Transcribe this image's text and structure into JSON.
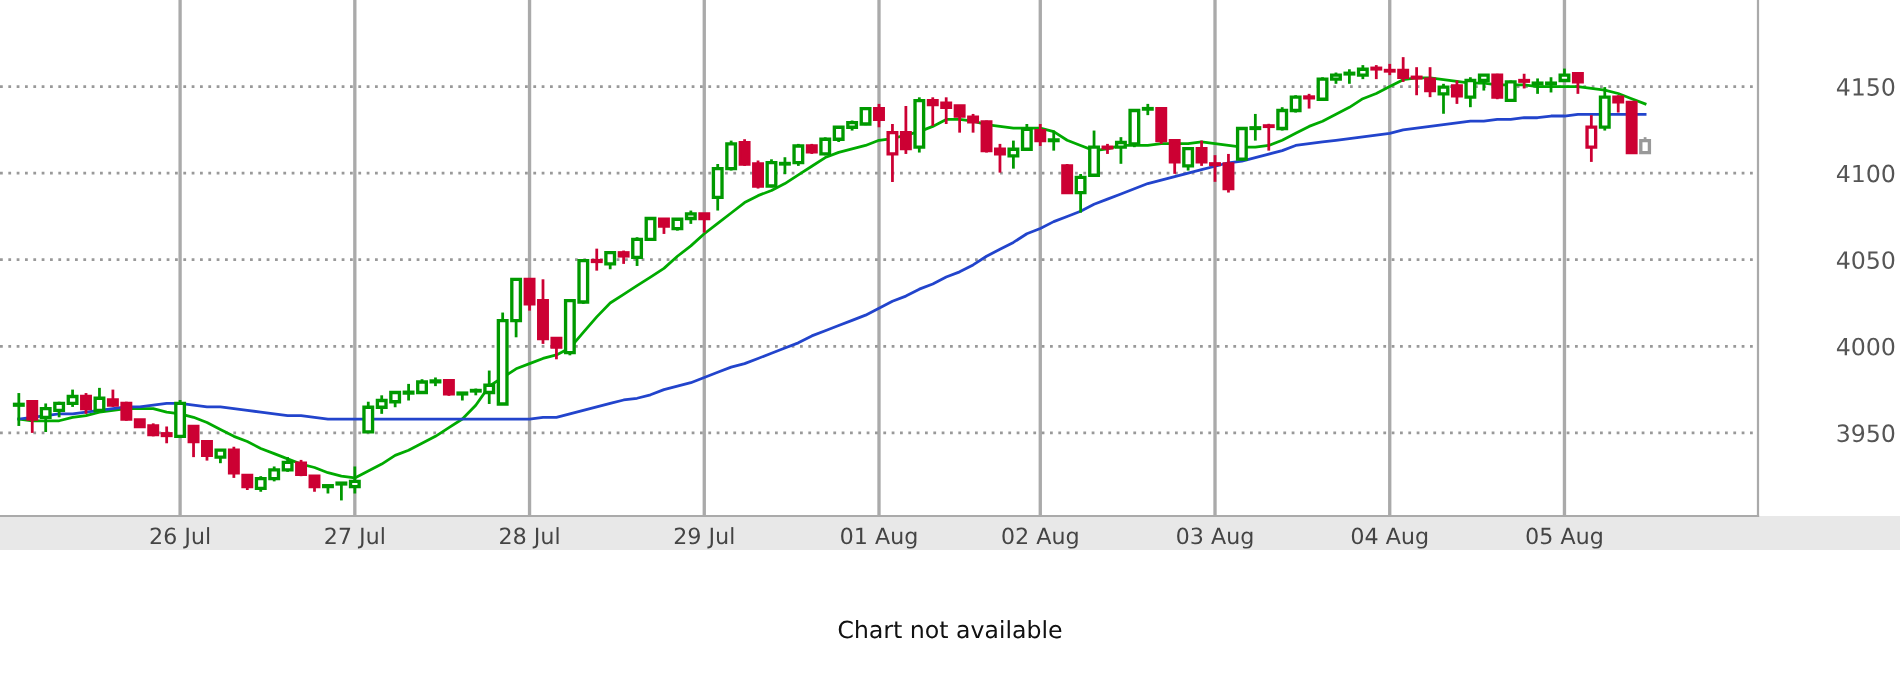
{
  "chart_data": {
    "type": "candlestick",
    "categories": [
      null,
      null,
      null,
      null,
      null,
      null,
      null,
      null,
      null,
      null,
      null,
      null,
      "26 Jul",
      null,
      null,
      null,
      null,
      null,
      null,
      null,
      null,
      null,
      null,
      null,
      null,
      "27 Jul",
      null,
      null,
      null,
      null,
      null,
      null,
      null,
      null,
      null,
      null,
      null,
      null,
      "28 Jul",
      null,
      null,
      null,
      null,
      null,
      null,
      null,
      null,
      null,
      null,
      null,
      null,
      "29 Jul",
      null,
      null,
      null,
      null,
      null,
      null,
      null,
      null,
      null,
      null,
      null,
      null,
      "01 Aug",
      null,
      null,
      null,
      null,
      null,
      null,
      null,
      null,
      null,
      null,
      null,
      "02 Aug",
      null,
      null,
      null,
      null,
      null,
      null,
      null,
      null,
      null,
      null,
      null,
      null,
      "03 Aug",
      null,
      null,
      null,
      null,
      null,
      null,
      null,
      null,
      null,
      null,
      null,
      null,
      "04 Aug",
      null,
      null,
      null,
      null,
      null,
      null,
      null,
      null,
      null,
      null,
      null,
      null,
      "05 Aug",
      null,
      null,
      null,
      null,
      null,
      null
    ],
    "ohlc": [
      [
        3966,
        3973,
        3954,
        3966.5
      ],
      [
        3968,
        3968,
        3950,
        3958
      ],
      [
        3959,
        3967,
        3950.5,
        3964
      ],
      [
        3963,
        3968,
        3959,
        3967
      ],
      [
        3967,
        3975,
        3965,
        3971
      ],
      [
        3971,
        3973,
        3961,
        3964
      ],
      [
        3963,
        3976,
        3962,
        3970
      ],
      [
        3969,
        3975,
        3965,
        3966
      ],
      [
        3967,
        3968,
        3957,
        3958
      ],
      [
        3957.5,
        3958,
        3953,
        3953.7
      ],
      [
        3954,
        3955.5,
        3948,
        3949
      ],
      [
        3949.5,
        3953.7,
        3944,
        3948.5
      ],
      [
        3948,
        3969,
        3947,
        3967
      ],
      [
        3953.7,
        3953.7,
        3936,
        3945
      ],
      [
        3945,
        3945,
        3934,
        3937
      ],
      [
        3936,
        3940,
        3932.5,
        3940
      ],
      [
        3940,
        3942,
        3924,
        3927
      ],
      [
        3925.5,
        3925.5,
        3917,
        3919
      ],
      [
        3918,
        3925,
        3916,
        3923.6
      ],
      [
        3923.6,
        3930.6,
        3922,
        3928.6
      ],
      [
        3928.6,
        3936,
        3927.5,
        3933
      ],
      [
        3932.5,
        3934.4,
        3925,
        3926
      ],
      [
        3925,
        3925,
        3916,
        3919
      ],
      [
        3919,
        3920,
        3915,
        3919.5
      ],
      [
        3920.5,
        3921.5,
        3911,
        3921
      ],
      [
        3919,
        3930.6,
        3915,
        3922
      ],
      [
        3950.6,
        3968,
        3950.6,
        3964.8
      ],
      [
        3964.8,
        3971.7,
        3961,
        3968.7
      ],
      [
        3968,
        3973.3,
        3964.8,
        3973.3
      ],
      [
        3973,
        3978.3,
        3968.7,
        3973.5
      ],
      [
        3973.3,
        3981,
        3972.5,
        3979.4
      ],
      [
        3979.5,
        3982,
        3977,
        3980
      ],
      [
        3980.2,
        3980.2,
        3971.4,
        3972.5
      ],
      [
        3972.5,
        3973.3,
        3968.7,
        3973
      ],
      [
        3974.2,
        3975.6,
        3971.7,
        3974.5
      ],
      [
        3973.3,
        3986,
        3966.7,
        3977.5
      ],
      [
        3966.7,
        4019.5,
        3966.7,
        4014.8
      ],
      [
        4014.8,
        4038.7,
        4005.2,
        4038.7
      ],
      [
        4038.7,
        4038.7,
        4020.6,
        4024.5
      ],
      [
        4026.4,
        4038.7,
        4001.4,
        4004.5
      ],
      [
        4004.5,
        4004.5,
        3992.5,
        3999.5
      ],
      [
        3996.4,
        4027.2,
        3994.8,
        4026.4
      ],
      [
        4025.6,
        4049.5,
        4024.5,
        4049.5
      ],
      [
        4049.5,
        4056.4,
        4043.7,
        4049
      ],
      [
        4047.6,
        4054.1,
        4044.5,
        4054.1
      ],
      [
        4054,
        4055.3,
        4047.6,
        4052.2
      ],
      [
        4051.4,
        4063,
        4046.4,
        4061.8
      ],
      [
        4061.8,
        4074.5,
        4061,
        4073.8
      ],
      [
        4073.4,
        4073.4,
        4064.9,
        4069.5
      ],
      [
        4068,
        4073.4,
        4066.8,
        4073.4
      ],
      [
        4073.8,
        4078.4,
        4070.7,
        4076.5
      ],
      [
        4076.5,
        4076.5,
        4065.7,
        4073.8
      ],
      [
        4086,
        4105.3,
        4078.4,
        4102.6
      ],
      [
        4102.6,
        4118.8,
        4101.5,
        4116.9
      ],
      [
        4117.6,
        4119.6,
        4104.2,
        4105.3
      ],
      [
        4105.3,
        4107.3,
        4091.1,
        4092.6
      ],
      [
        4092.6,
        4108,
        4091.8,
        4106.1
      ],
      [
        4105.3,
        4109.2,
        4099.5,
        4105.6
      ],
      [
        4106.1,
        4116.9,
        4104.2,
        4115.7
      ],
      [
        4115.7,
        4116.9,
        4111.1,
        4112.3
      ],
      [
        4111.1,
        4120.7,
        4110.3,
        4119.6
      ],
      [
        4119.6,
        4126.5,
        4118,
        4126.5
      ],
      [
        4126.5,
        4130.4,
        4124.6,
        4129.2
      ],
      [
        4128.4,
        4137.3,
        4127.7,
        4137.3
      ],
      [
        4137.3,
        4140,
        4126.5,
        4131.1
      ],
      [
        4111.1,
        4128.4,
        4094.9,
        4123.4
      ],
      [
        4123.4,
        4138.8,
        4111.1,
        4114.2
      ],
      [
        4115,
        4143.8,
        4111.9,
        4141.9
      ],
      [
        4141.9,
        4143.8,
        4127.3,
        4139.6
      ],
      [
        4140.4,
        4143.8,
        4128.4,
        4138
      ],
      [
        4138.8,
        4138.8,
        4123.4,
        4133
      ],
      [
        4132.3,
        4134.2,
        4123.4,
        4129.6
      ],
      [
        4129.6,
        4130.4,
        4111.9,
        4113
      ],
      [
        4113.8,
        4116.9,
        4100.3,
        4111.1
      ],
      [
        4110,
        4118.8,
        4102.6,
        4113.8
      ],
      [
        4113.8,
        4128.4,
        4113,
        4125.3
      ],
      [
        4124.6,
        4128.4,
        4115.7,
        4118.8
      ],
      [
        4118.8,
        4124.6,
        4113,
        4119.2
      ],
      [
        4104.2,
        4105.3,
        4088,
        4088.8
      ],
      [
        4088.8,
        4099.5,
        4077.2,
        4097.6
      ],
      [
        4098.8,
        4124.6,
        4098.8,
        4115
      ],
      [
        4115,
        4116.9,
        4111.1,
        4114.6
      ],
      [
        4115,
        4120.8,
        4105.4,
        4117.7
      ],
      [
        4116.9,
        4136.2,
        4115,
        4136.2
      ],
      [
        4137,
        4140,
        4133.5,
        4137.3
      ],
      [
        4137.3,
        4137.3,
        4116.9,
        4118.8
      ],
      [
        4118.8,
        4118.8,
        4099.6,
        4106.5
      ],
      [
        4104.2,
        4115,
        4101.5,
        4114.2
      ],
      [
        4114.2,
        4118.8,
        4104.2,
        4106.5
      ],
      [
        4105.4,
        4110.4,
        4095,
        4105
      ],
      [
        4105.4,
        4111.1,
        4088.8,
        4091.1
      ],
      [
        4108.1,
        4126.5,
        4107.3,
        4125.8
      ],
      [
        4125.8,
        4134.2,
        4118.8,
        4126.2
      ],
      [
        4127.3,
        4128.5,
        4113,
        4127
      ],
      [
        4125.8,
        4138.1,
        4124.6,
        4136.2
      ],
      [
        4136.2,
        4145,
        4135,
        4143.9
      ],
      [
        4144,
        4145.8,
        4137.3,
        4143.5
      ],
      [
        4142.7,
        4155.4,
        4142.7,
        4154.3
      ],
      [
        4154.3,
        4158.1,
        4151.6,
        4156.6
      ],
      [
        4157.3,
        4160,
        4151.6,
        4157.7
      ],
      [
        4156.6,
        4162.4,
        4154.3,
        4160
      ],
      [
        4160.6,
        4162.4,
        4154.3,
        4160.2
      ],
      [
        4159.3,
        4163.1,
        4156.6,
        4159
      ],
      [
        4159.3,
        4167,
        4152.7,
        4155.4
      ],
      [
        4155.4,
        4161.2,
        4145,
        4155
      ],
      [
        4154.3,
        4161.2,
        4143.9,
        4147.7
      ],
      [
        4145.8,
        4151.6,
        4134.3,
        4149.7
      ],
      [
        4150.4,
        4153.5,
        4140,
        4144.6
      ],
      [
        4143.9,
        4155.4,
        4138.1,
        4153.5
      ],
      [
        4153.5,
        4156.6,
        4147.7,
        4156.6
      ],
      [
        4156.6,
        4157.4,
        4142.7,
        4143.9
      ],
      [
        4142,
        4153.5,
        4141.2,
        4152.7
      ],
      [
        4153.5,
        4157.4,
        4148.9,
        4153.1
      ],
      [
        4151.6,
        4154.7,
        4145.8,
        4152
      ],
      [
        4151.6,
        4155.4,
        4146.6,
        4152
      ],
      [
        4153.5,
        4160.4,
        4152.7,
        4156.6
      ],
      [
        4157.4,
        4157.4,
        4145.8,
        4152.7
      ],
      [
        4115,
        4133.5,
        4106.5,
        4126.6
      ],
      [
        4126.6,
        4149.7,
        4124.6,
        4143.9
      ],
      [
        4143.9,
        4145,
        4135,
        4141.2
      ],
      [
        4140.8,
        4140.8,
        4111.1,
        4111.9
      ],
      [
        4111.9,
        4120.8,
        4111.9,
        4118.8
      ]
    ],
    "colors": [
      "#009900",
      "#cc0033",
      "#009900",
      "#009900",
      "#009900",
      "#cc0033",
      "#009900",
      "#cc0033",
      "#cc0033",
      "#cc0033",
      "#cc0033",
      "#cc0033",
      "#009900",
      "#cc0033",
      "#cc0033",
      "#009900",
      "#cc0033",
      "#cc0033",
      "#009900",
      "#009900",
      "#009900",
      "#cc0033",
      "#cc0033",
      "#009900",
      "#009900",
      "#009900",
      "#009900",
      "#009900",
      "#009900",
      "#009900",
      "#009900",
      "#009900",
      "#cc0033",
      "#009900",
      "#009900",
      "#009900",
      "#009900",
      "#009900",
      "#cc0033",
      "#cc0033",
      "#cc0033",
      "#009900",
      "#009900",
      "#cc0033",
      "#009900",
      "#cc0033",
      "#009900",
      "#009900",
      "#cc0033",
      "#009900",
      "#009900",
      "#cc0033",
      "#009900",
      "#009900",
      "#cc0033",
      "#cc0033",
      "#009900",
      "#009900",
      "#009900",
      "#cc0033",
      "#009900",
      "#009900",
      "#009900",
      "#009900",
      "#cc0033",
      "#cc0033",
      "#cc0033",
      "#009900",
      "#cc0033",
      "#cc0033",
      "#cc0033",
      "#cc0033",
      "#cc0033",
      "#cc0033",
      "#009900",
      "#009900",
      "#cc0033",
      "#009900",
      "#cc0033",
      "#009900",
      "#009900",
      "#cc0033",
      "#009900",
      "#009900",
      "#009900",
      "#cc0033",
      "#cc0033",
      "#009900",
      "#cc0033",
      "#cc0033",
      "#cc0033",
      "#009900",
      "#009900",
      "#cc0033",
      "#009900",
      "#009900",
      "#cc0033",
      "#009900",
      "#009900",
      "#009900",
      "#009900",
      "#cc0033",
      "#cc0033",
      "#cc0033",
      "#cc0033",
      "#cc0033",
      "#009900",
      "#cc0033",
      "#009900",
      "#009900",
      "#cc0033",
      "#009900",
      "#cc0033",
      "#009900",
      "#009900",
      "#009900",
      "#cc0033",
      "#cc0033",
      "#009900",
      "#cc0033",
      "#cc0033",
      "#999999"
    ],
    "series": [
      {
        "type": "line",
        "color": "#00aa00",
        "values": [
          3958,
          3957,
          3957,
          3957,
          3959,
          3960,
          3962,
          3963,
          3964,
          3964,
          3964,
          3962,
          3961,
          3959,
          3956,
          3952,
          3948,
          3945,
          3941,
          3938,
          3935,
          3932,
          3930,
          3927,
          3925,
          3924,
          3928,
          3932,
          3937,
          3940,
          3944,
          3948,
          3953,
          3958,
          3966,
          3977,
          3982,
          3987,
          3990,
          3993,
          3995,
          3999,
          4008,
          4017,
          4025,
          4030,
          4035,
          4040,
          4045,
          4052,
          4058,
          4065,
          4071,
          4077,
          4083,
          4087,
          4090,
          4094,
          4099,
          4104,
          4109,
          4112,
          4114,
          4116,
          4119,
          4120,
          4122,
          4124,
          4127,
          4131,
          4131,
          4130,
          4128,
          4127,
          4126,
          4126,
          4126,
          4124,
          4119,
          4116,
          4113,
          4114,
          4116,
          4116,
          4116,
          4117,
          4117,
          4117,
          4118,
          4117,
          4116,
          4115,
          4115,
          4116,
          4119,
          4123,
          4127,
          4130,
          4134,
          4138,
          4143,
          4146,
          4150,
          4154,
          4155,
          4155,
          4154,
          4153,
          4152,
          4152,
          4151,
          4151,
          4151,
          4150,
          4150,
          4150,
          4150,
          4149,
          4148,
          4146,
          4143,
          4140
        ]
      },
      {
        "type": "line",
        "color": "#2244cc",
        "values": [
          3958,
          3959,
          3960,
          3961,
          3961,
          3962,
          3963,
          3964,
          3965,
          3965,
          3966,
          3967,
          3967,
          3966,
          3965,
          3965,
          3964,
          3963,
          3962,
          3961,
          3960,
          3960,
          3959,
          3958,
          3958,
          3958,
          3958,
          3958,
          3958,
          3958,
          3958,
          3958,
          3958,
          3958,
          3958,
          3958,
          3958,
          3958,
          3958,
          3959,
          3959,
          3961,
          3963,
          3965,
          3967,
          3969,
          3970,
          3972,
          3975,
          3977,
          3979,
          3982,
          3985,
          3988,
          3990,
          3993,
          3996,
          3999,
          4002,
          4006,
          4009,
          4012,
          4015,
          4018,
          4022,
          4026,
          4029,
          4033,
          4036,
          4040,
          4043,
          4047,
          4052,
          4056,
          4060,
          4065,
          4068,
          4072,
          4075,
          4078,
          4082,
          4085,
          4088,
          4091,
          4094,
          4096,
          4098,
          4100,
          4102,
          4104,
          4106,
          4107,
          4109,
          4111,
          4113,
          4116,
          4117,
          4118,
          4119,
          4120,
          4121,
          4122,
          4123,
          4125,
          4126,
          4127,
          4128,
          4129,
          4130,
          4130,
          4131,
          4131,
          4132,
          4132,
          4133,
          4133,
          4134,
          4134,
          4134,
          4134,
          4134,
          4134
        ]
      }
    ],
    "ylim": [
      3902,
      4200
    ],
    "yticks": [
      3950,
      4000,
      4050,
      4100,
      4150
    ],
    "grid": true,
    "annotations": [
      "Chart not available"
    ]
  }
}
